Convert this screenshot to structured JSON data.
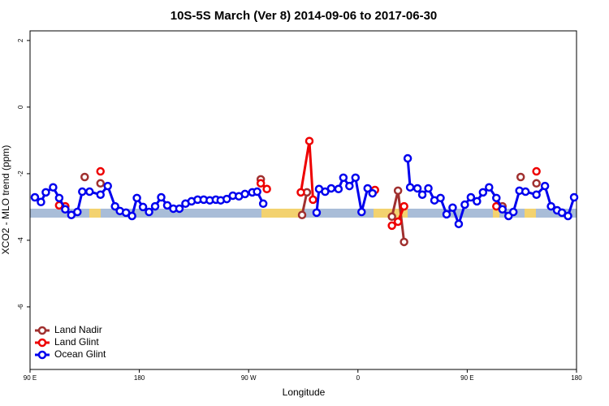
{
  "chart_data": {
    "type": "line",
    "title": "10S-5S March (Ver 8)   2014-09-06 to 2017-06-30",
    "x_label": "Longitude",
    "y_label": "XCO2 - MLO trend (ppm)",
    "xlim": [
      90,
      540
    ],
    "ylim": [
      -7.88,
      2.29
    ],
    "xticks": [
      {
        "value": 90,
        "label": "90 E"
      },
      180,
      {
        "value": 270,
        "label": "90 W"
      },
      {
        "value": 360,
        "label": "0"
      },
      {
        "value": 450,
        "label": "90 E"
      },
      {
        "value": 540,
        "label": "180"
      }
    ],
    "yticks": [
      2,
      0,
      -2,
      -4,
      -6
    ],
    "legend": "bottom-left",
    "series": [
      {
        "name": "Land Nadir",
        "color": "#a0302f",
        "x": [
          135,
          null,
          148,
          null,
          280,
          null,
          314,
          318,
          null,
          388,
          393,
          398,
          null,
          479,
          null,
          494,
          null,
          507
        ],
        "values": [
          -2.1,
          null,
          -2.29,
          null,
          -2.17,
          null,
          -3.24,
          -2.56,
          null,
          -3.29,
          -2.51,
          -4.05,
          null,
          -2.98,
          null,
          -2.1,
          null,
          -2.29
        ]
      },
      {
        "name": "Land Glint",
        "color": "#ee0000",
        "x": [
          114,
          119,
          null,
          148,
          null,
          280,
          285,
          null,
          313,
          320,
          323,
          null,
          374,
          null,
          388,
          393,
          398,
          null,
          474,
          null,
          507
        ],
        "values": [
          -2.95,
          -2.98,
          null,
          -1.93,
          null,
          -2.29,
          -2.46,
          null,
          -2.56,
          -1.02,
          -2.78,
          null,
          -2.49,
          null,
          -3.56,
          -3.44,
          -2.98,
          null,
          -2.98,
          null,
          -1.93
        ]
      },
      {
        "name": "Ocean Glint",
        "color": "#0000ee",
        "x": [
          94,
          99,
          103,
          109,
          114,
          119,
          124,
          129,
          133,
          139,
          148,
          154,
          160,
          164,
          169,
          174,
          178,
          183,
          188,
          193,
          198,
          203,
          208,
          213,
          218,
          223,
          228,
          233,
          238,
          243,
          247,
          252,
          257,
          262,
          267,
          273,
          277,
          282,
          null,
          326,
          328,
          333,
          338,
          344,
          348,
          353,
          358,
          363,
          368,
          372,
          null,
          401,
          403,
          409,
          413,
          418,
          423,
          428,
          433,
          438,
          443,
          448,
          453,
          458,
          463,
          468,
          474,
          479,
          484,
          488,
          493,
          498,
          507,
          514,
          519,
          524,
          528,
          533,
          538
        ],
        "values": [
          -2.71,
          -2.85,
          -2.56,
          -2.41,
          -2.73,
          -3.07,
          -3.24,
          -3.15,
          -2.54,
          -2.54,
          -2.63,
          -2.37,
          -2.98,
          -3.12,
          -3.17,
          -3.27,
          -2.73,
          -3.0,
          -3.15,
          -2.98,
          -2.71,
          -2.95,
          -3.05,
          -3.05,
          -2.9,
          -2.83,
          -2.78,
          -2.78,
          -2.8,
          -2.78,
          -2.8,
          -2.76,
          -2.66,
          -2.68,
          -2.61,
          -2.56,
          -2.54,
          -2.9,
          null,
          -3.17,
          -2.46,
          -2.54,
          -2.44,
          -2.46,
          -2.12,
          -2.37,
          -2.12,
          -3.15,
          -2.44,
          -2.59,
          null,
          -1.54,
          -2.41,
          -2.44,
          -2.63,
          -2.44,
          -2.8,
          -2.73,
          -3.22,
          -3.02,
          -3.51,
          -2.93,
          -2.71,
          -2.83,
          -2.56,
          -2.41,
          -2.73,
          -3.07,
          -3.27,
          -3.15,
          -2.51,
          -2.54,
          -2.63,
          -2.37,
          -2.98,
          -3.1,
          -3.17,
          -3.27,
          -2.71
        ]
      }
    ]
  }
}
